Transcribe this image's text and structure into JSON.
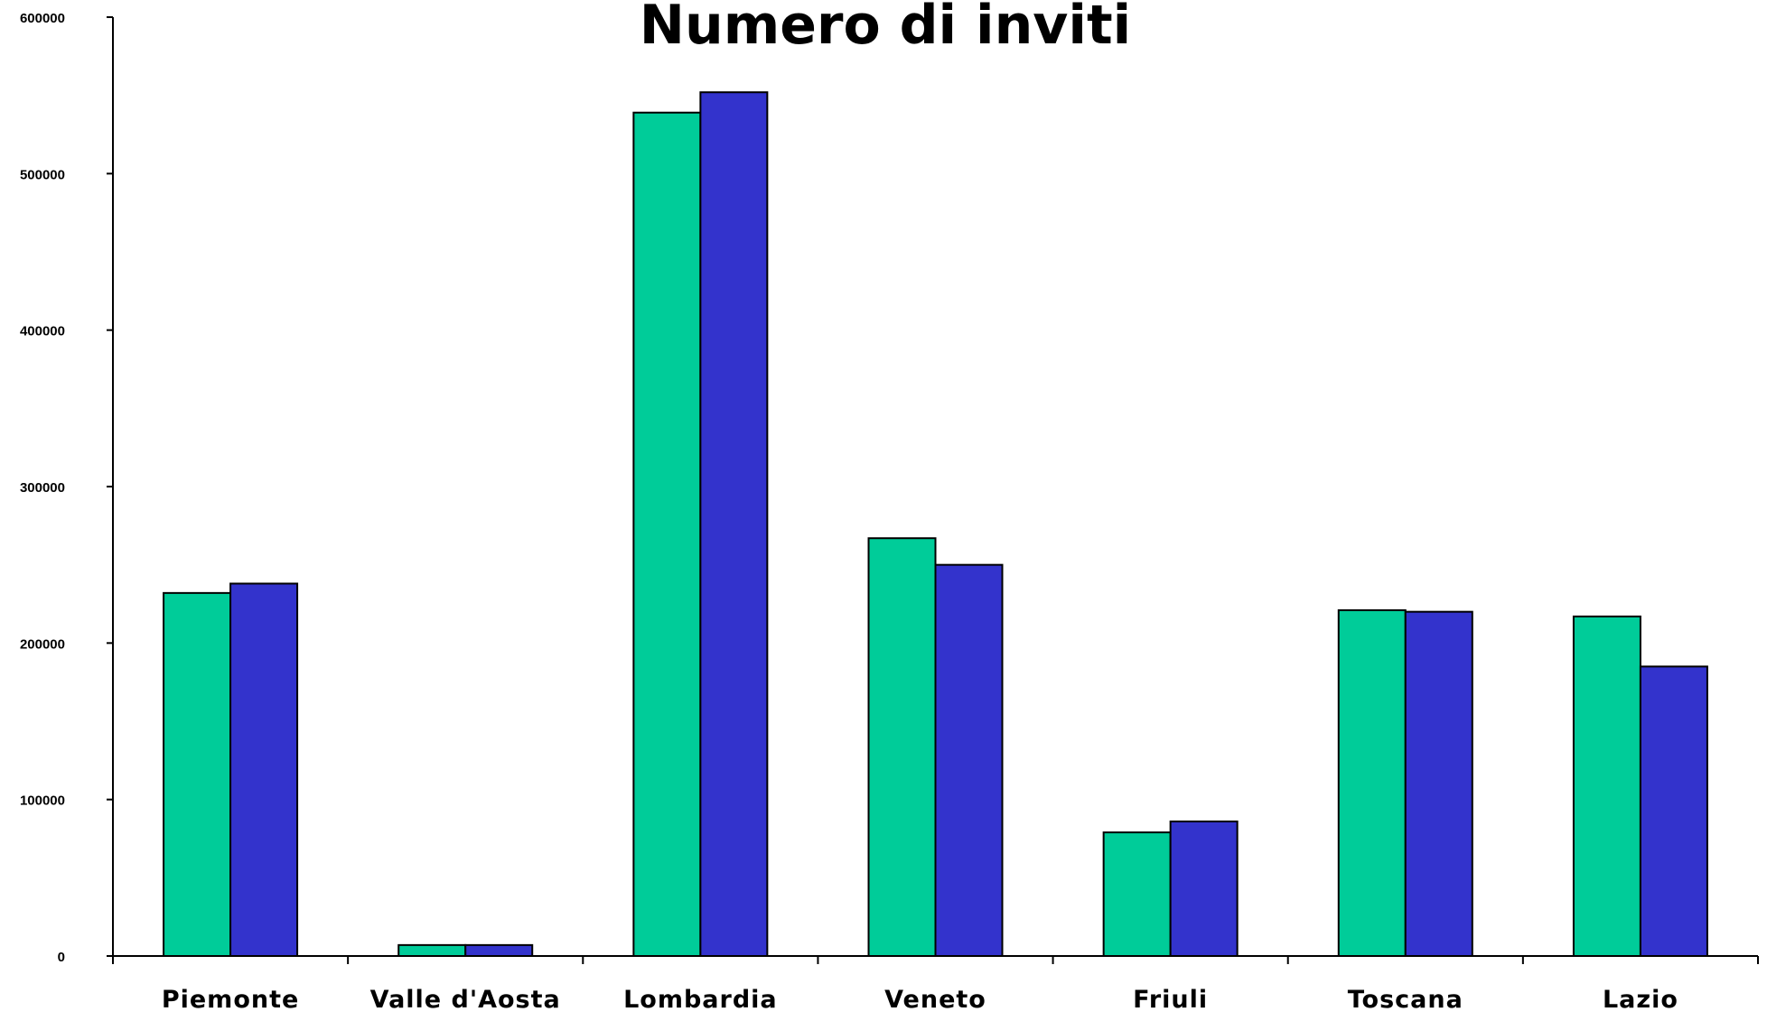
{
  "chart_data": {
    "type": "bar",
    "title": "Numero di inviti",
    "xlabel": "",
    "ylabel": "",
    "categories": [
      "Piemonte",
      "Valle d'Aosta",
      "Lombardia",
      "Veneto",
      "Friuli",
      "Toscana",
      "Lazio"
    ],
    "series": [
      {
        "values": [
          232000,
          7000,
          539000,
          267000,
          79000,
          221000,
          217000
        ]
      },
      {
        "values": [
          238000,
          7000,
          552000,
          250000,
          86000,
          220000,
          185000
        ]
      }
    ],
    "ylim": [
      0,
      600000
    ],
    "yticks": [
      "0",
      "100000",
      "200000",
      "300000",
      "400000",
      "500000",
      "600000"
    ],
    "grid": false,
    "legend": "none"
  },
  "colors": {
    "series_1": "#00CC99",
    "series_2": "#3333CC"
  }
}
